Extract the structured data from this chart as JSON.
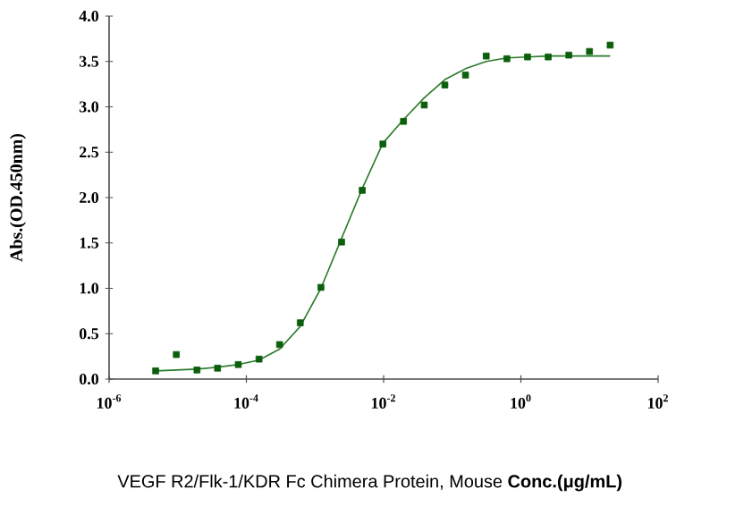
{
  "chart_data": {
    "type": "scatter",
    "xlabel": "VEGF R2/Flk-1/KDR Fc Chimera Protein, Mouse **Conc.(μg/mL)**",
    "ylabel": "Abs.(OD.450nm)",
    "log": "x",
    "xlim": [
      1e-06,
      100
    ],
    "xticks": [
      {
        "value": 1e-06,
        "label": "10$^{-6}$"
      },
      {
        "value": 0.0001,
        "label": "10$^{-4}$"
      },
      {
        "value": 0.01,
        "label": "10$^{-2}$"
      },
      {
        "value": 1,
        "label": "10$^{0}$"
      },
      {
        "value": 100,
        "label": "10$^{2}$"
      }
    ],
    "ylim": [
      0,
      4
    ],
    "yticks": [
      {
        "value": 0,
        "label": "0.0"
      },
      {
        "value": 0.5,
        "label": "0.5"
      },
      {
        "value": 1,
        "label": "1.0"
      },
      {
        "value": 1.5,
        "label": "1.5"
      },
      {
        "value": 2,
        "label": "2.0"
      },
      {
        "value": 2.5,
        "label": "2.5"
      },
      {
        "value": 3,
        "label": "3.0"
      },
      {
        "value": 3.5,
        "label": "3.5"
      },
      {
        "value": 4,
        "label": "4.0"
      }
    ],
    "grid": false,
    "series": [
      {
        "type": "scatter",
        "marker": "square",
        "color": "#0b5e0b",
        "x": [
          4.77e-06,
          9.54e-06,
          1.91e-05,
          3.81e-05,
          7.63e-05,
          0.000153,
          0.000305,
          0.00061,
          0.00122,
          0.00244,
          0.00488,
          0.00977,
          0.0195,
          0.0391,
          0.0781,
          0.156,
          0.3125,
          0.625,
          1.25,
          2.5,
          5,
          10,
          20
        ],
        "values": [
          0.09,
          0.27,
          0.1,
          0.12,
          0.16,
          0.22,
          0.38,
          0.62,
          1.01,
          1.51,
          2.08,
          2.59,
          2.84,
          3.02,
          3.24,
          3.35,
          3.56,
          3.53,
          3.55,
          3.55,
          3.57,
          3.61,
          3.68
        ]
      },
      {
        "type": "line",
        "marker": "none",
        "line_style": "solid",
        "color": "#2a7a2a",
        "x": [
          4.77e-06,
          9.54e-06,
          1.91e-05,
          3.81e-05,
          7.63e-05,
          0.000153,
          0.000305,
          0.00061,
          0.00122,
          0.00244,
          0.00488,
          0.00977,
          0.0195,
          0.0391,
          0.0781,
          0.156,
          0.3125,
          0.625,
          1.25,
          2.5,
          5,
          10,
          20
        ],
        "values": [
          0.09,
          0.1,
          0.11,
          0.13,
          0.16,
          0.21,
          0.33,
          0.58,
          1.0,
          1.55,
          2.1,
          2.6,
          2.86,
          3.1,
          3.3,
          3.42,
          3.5,
          3.54,
          3.55,
          3.56,
          3.56,
          3.56,
          3.56
        ]
      }
    ]
  }
}
